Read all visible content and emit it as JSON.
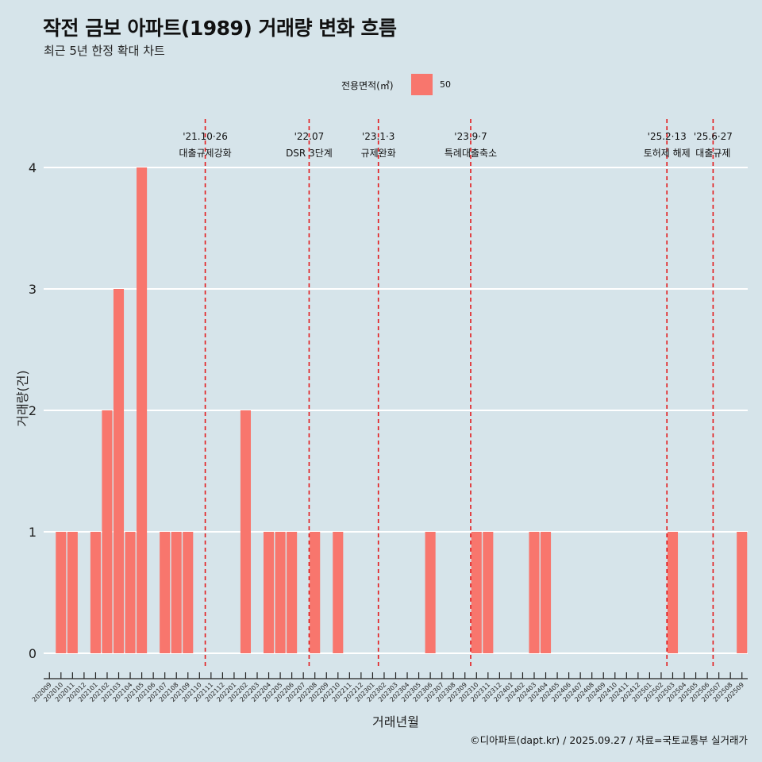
{
  "title": "작전 금보 아파트(1989) 거래량 변화 흐름",
  "subtitle": "최근 5년 한정 확대 차트",
  "caption": "©디아파트(dapt.kr) / 2025.09.27 / 자료=국토교통부 실거래가",
  "legend": {
    "title": "전용면적(㎡)",
    "items": [
      {
        "label": "50",
        "color": "#f8766d"
      }
    ]
  },
  "colors": {
    "background": "#d6e4ea",
    "bar": "#f8766d",
    "grid": "#ffffff",
    "event_line": "#e31a1c"
  },
  "chart_data": {
    "type": "bar",
    "title": "작전 금보 아파트(1989) 거래량 변화 흐름",
    "subtitle": "최근 5년 한정 확대 차트",
    "xlabel": "거래년월",
    "ylabel": "거래량(건)",
    "ylim": [
      0,
      4
    ],
    "yticks": [
      0,
      1,
      2,
      3,
      4
    ],
    "grid": "horizontal",
    "legend_position": "top",
    "categories": [
      "202009",
      "202010",
      "202011",
      "202012",
      "202101",
      "202102",
      "202103",
      "202104",
      "202105",
      "202106",
      "202107",
      "202108",
      "202109",
      "202110",
      "202111",
      "202112",
      "202201",
      "202202",
      "202203",
      "202204",
      "202205",
      "202206",
      "202207",
      "202208",
      "202209",
      "202210",
      "202211",
      "202212",
      "202301",
      "202302",
      "202303",
      "202304",
      "202305",
      "202306",
      "202307",
      "202308",
      "202309",
      "202310",
      "202311",
      "202312",
      "202401",
      "202402",
      "202403",
      "202404",
      "202405",
      "202406",
      "202407",
      "202408",
      "202409",
      "202410",
      "202411",
      "202412",
      "202501",
      "202502",
      "202503",
      "202504",
      "202505",
      "202506",
      "202507",
      "202508",
      "202509"
    ],
    "series": [
      {
        "name": "50",
        "values": [
          0,
          1,
          1,
          0,
          1,
          2,
          3,
          1,
          4,
          0,
          1,
          1,
          1,
          0,
          0,
          0,
          0,
          2,
          0,
          1,
          1,
          1,
          0,
          1,
          0,
          1,
          0,
          0,
          0,
          0,
          0,
          0,
          0,
          1,
          0,
          0,
          0,
          1,
          1,
          0,
          0,
          0,
          1,
          1,
          0,
          0,
          0,
          0,
          0,
          0,
          0,
          0,
          0,
          0,
          1,
          0,
          0,
          0,
          0,
          0,
          1
        ]
      }
    ],
    "annotations": [
      {
        "x": "202110",
        "date": "'21.10·26",
        "label": "대출규제강화"
      },
      {
        "x": "202207",
        "date": "'22.07",
        "label": "DSR 3단계"
      },
      {
        "x": "202301",
        "date": "'23.1·3",
        "label": "규제완화"
      },
      {
        "x": "202309",
        "date": "'23.9·7",
        "label": "특례대출축소"
      },
      {
        "x": "202502",
        "date": "'25.2·13",
        "label": "토허제 해제"
      },
      {
        "x": "202506",
        "date": "'25.6·27",
        "label": "대출규제"
      }
    ]
  }
}
